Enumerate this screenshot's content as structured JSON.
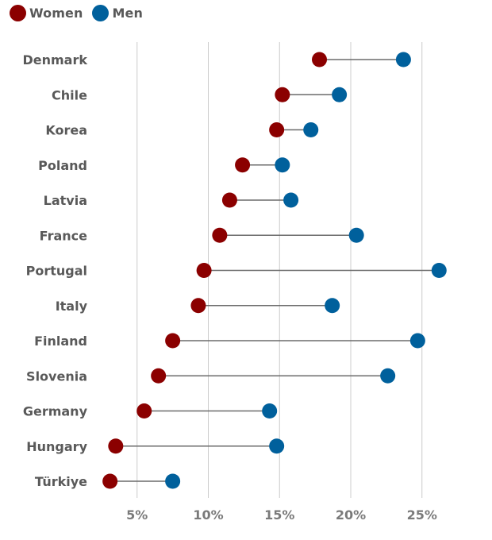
{
  "chart_data": {
    "type": "dumbbell",
    "title": "",
    "xlabel": "",
    "ylabel": "",
    "xlim": [
      0,
      30
    ],
    "x_ticks": [
      5,
      10,
      15,
      20,
      25
    ],
    "x_tick_labels": [
      "5%",
      "10%",
      "15%",
      "20%",
      "25%"
    ],
    "grid": true,
    "legend_position": "top-left",
    "categories": [
      "Denmark",
      "Chile",
      "Korea",
      "Poland",
      "Latvia",
      "France",
      "Portugal",
      "Italy",
      "Finland",
      "Slovenia",
      "Germany",
      "Hungary",
      "Türkiye"
    ],
    "series": [
      {
        "name": "Women",
        "color": "#8b0000",
        "values": [
          17.8,
          15.2,
          14.8,
          12.4,
          11.5,
          10.8,
          9.7,
          9.3,
          7.5,
          6.5,
          5.5,
          3.5,
          3.1
        ]
      },
      {
        "name": "Men",
        "color": "#00609c",
        "values": [
          23.7,
          19.2,
          17.2,
          15.2,
          15.8,
          20.4,
          26.2,
          18.7,
          24.7,
          22.6,
          14.3,
          14.8,
          7.5
        ]
      }
    ]
  }
}
